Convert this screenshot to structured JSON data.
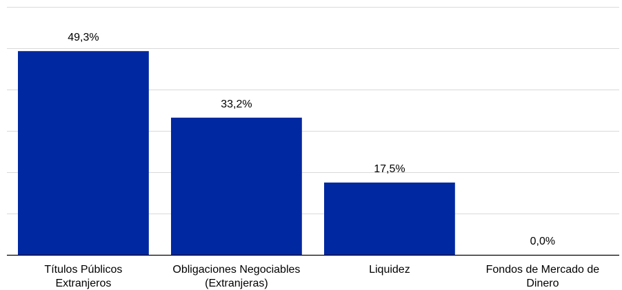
{
  "chart_data": {
    "type": "bar",
    "categories": [
      [
        "Títulos Públicos",
        "Extranjeros"
      ],
      [
        "Obligaciones Negociables",
        "(Extranjeras)"
      ],
      [
        "Liquidez"
      ],
      [
        "Fondos de Mercado de",
        "Dinero"
      ]
    ],
    "values": [
      49.3,
      33.2,
      17.5,
      0.0
    ],
    "data_labels": [
      "49,3%",
      "33,2%",
      "17,5%",
      "0,0%"
    ],
    "title": "",
    "xlabel": "",
    "ylabel": "",
    "ylim": [
      0,
      60
    ],
    "grid": true,
    "legend": "none",
    "colors": {
      "bar": "#0028A0",
      "grid": "#D9D9D9",
      "axis": "#000000"
    }
  }
}
